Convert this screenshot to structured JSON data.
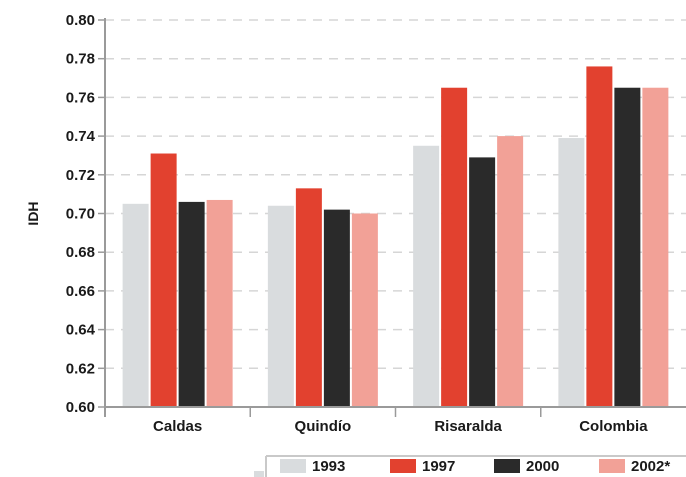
{
  "chart_data": {
    "type": "bar",
    "title": "",
    "xlabel": "",
    "ylabel": "IDH",
    "ylim": [
      0.6,
      0.8
    ],
    "yticks": [
      "0.60",
      "0.62",
      "0.64",
      "0.66",
      "0.68",
      "0.70",
      "0.72",
      "0.74",
      "0.76",
      "0.78",
      "0.80"
    ],
    "categories": [
      "Caldas",
      "Quindío",
      "Risaralda",
      "Colombia"
    ],
    "series": [
      {
        "name": "1993",
        "color": "#d9dcde",
        "values": [
          0.705,
          0.704,
          0.735,
          0.739
        ]
      },
      {
        "name": "1997",
        "color": "#e2412f",
        "values": [
          0.731,
          0.713,
          0.765,
          0.776
        ]
      },
      {
        "name": "2000",
        "color": "#2a2a2a",
        "values": [
          0.706,
          0.702,
          0.729,
          0.765
        ]
      },
      {
        "name": "2002*",
        "color": "#f2a197",
        "values": [
          0.707,
          0.7,
          0.74,
          0.765
        ]
      }
    ],
    "grid": true,
    "legend_position": "bottom"
  }
}
